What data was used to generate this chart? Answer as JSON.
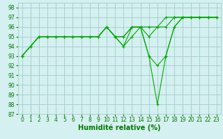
{
  "series": [
    {
      "x": [
        0,
        1,
        2,
        3,
        4,
        5,
        6,
        7,
        8,
        9,
        10,
        11,
        12,
        13,
        14,
        15,
        16,
        17,
        18,
        19,
        20,
        21,
        22,
        23
      ],
      "y": [
        93,
        94,
        95,
        95,
        95,
        95,
        95,
        95,
        95,
        95,
        96,
        95,
        95,
        96,
        96,
        96,
        96,
        97,
        97,
        97,
        97,
        97,
        97,
        97
      ]
    },
    {
      "x": [
        0,
        1,
        2,
        3,
        4,
        5,
        6,
        7,
        8,
        9,
        10,
        11,
        12,
        13,
        14,
        15,
        16,
        17,
        18,
        19,
        20,
        21,
        22,
        23
      ],
      "y": [
        93,
        94,
        95,
        95,
        95,
        95,
        95,
        95,
        95,
        95,
        96,
        95,
        95,
        96,
        96,
        95,
        96,
        96,
        97,
        97,
        97,
        97,
        97,
        97
      ]
    },
    {
      "x": [
        0,
        1,
        2,
        3,
        4,
        5,
        6,
        7,
        8,
        9,
        10,
        11,
        12,
        13,
        14,
        15,
        16,
        17,
        18,
        19,
        20,
        21,
        22,
        23
      ],
      "y": [
        93,
        94,
        95,
        95,
        95,
        95,
        95,
        95,
        95,
        95,
        96,
        95,
        94,
        95,
        96,
        93,
        92,
        93,
        96,
        97,
        97,
        97,
        97,
        97
      ]
    },
    {
      "x": [
        0,
        1,
        2,
        3,
        4,
        5,
        6,
        7,
        8,
        9,
        10,
        11,
        12,
        13,
        14,
        15,
        16,
        17,
        18,
        19,
        20,
        21,
        22,
        23
      ],
      "y": [
        93,
        94,
        95,
        95,
        95,
        95,
        95,
        95,
        95,
        95,
        96,
        95,
        94,
        96,
        96,
        93,
        88,
        93,
        96,
        97,
        97,
        97,
        97,
        97
      ]
    }
  ],
  "xlabel": "Humidité relative (%)",
  "xlim": [
    -0.5,
    23.5
  ],
  "ylim": [
    87,
    98.5
  ],
  "yticks": [
    87,
    88,
    89,
    90,
    91,
    92,
    93,
    94,
    95,
    96,
    97,
    98
  ],
  "xticks": [
    0,
    1,
    2,
    3,
    4,
    5,
    6,
    7,
    8,
    9,
    10,
    11,
    12,
    13,
    14,
    15,
    16,
    17,
    18,
    19,
    20,
    21,
    22,
    23
  ],
  "bg_color": "#d5f0f0",
  "grid_color": "#a0cccc",
  "line_color": "#00aa00",
  "text_color": "#007700",
  "xlabel_fontsize": 7,
  "tick_fontsize": 5.5
}
